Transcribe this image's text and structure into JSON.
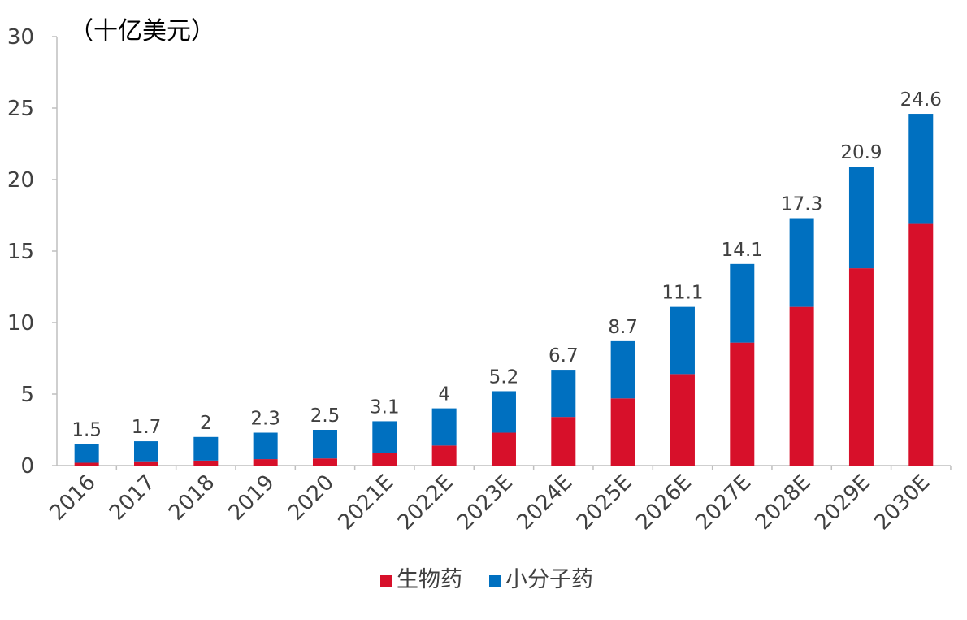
{
  "chart_data": {
    "type": "bar",
    "stacked": true,
    "unit_label": "（十亿美元）",
    "categories": [
      "2016",
      "2017",
      "2018",
      "2019",
      "2020",
      "2021E",
      "2022E",
      "2023E",
      "2024E",
      "2025E",
      "2026E",
      "2027E",
      "2028E",
      "2029E",
      "2030E"
    ],
    "series": [
      {
        "name": "生物药",
        "color": "#D7102A",
        "values": [
          0.2,
          0.3,
          0.35,
          0.45,
          0.5,
          0.9,
          1.4,
          2.3,
          3.4,
          4.7,
          6.4,
          8.6,
          11.1,
          13.8,
          16.9
        ]
      },
      {
        "name": "小分子药",
        "color": "#0070C0",
        "values": [
          1.3,
          1.4,
          1.65,
          1.85,
          2.0,
          2.2,
          2.6,
          2.9,
          3.3,
          4.0,
          4.7,
          5.5,
          6.2,
          7.1,
          7.7
        ]
      }
    ],
    "totals": [
      "1.5",
      "1.7",
      "2",
      "2.3",
      "2.5",
      "3.1",
      "4",
      "5.2",
      "6.7",
      "8.7",
      "11.1",
      "14.1",
      "17.3",
      "20.9",
      "24.6"
    ],
    "ylim": [
      0,
      30
    ],
    "yticks": [
      0,
      5,
      10,
      15,
      20,
      25,
      30
    ],
    "xtick_rotation": "-45deg",
    "grid": false,
    "legend_position": "bottom-center"
  }
}
